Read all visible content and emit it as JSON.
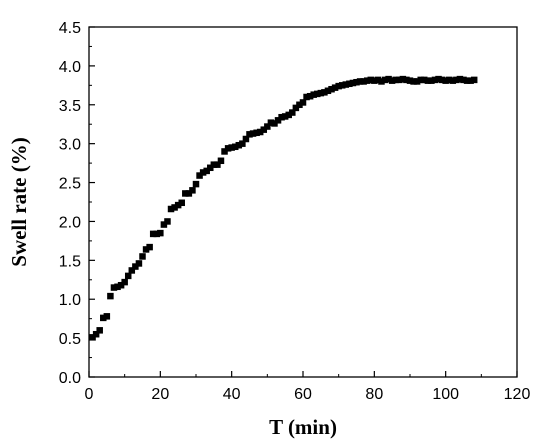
{
  "chart_data": {
    "type": "scatter",
    "title": "",
    "xlabel": "T (min)",
    "ylabel": "Swell rate (%)",
    "xlim": [
      0,
      120
    ],
    "ylim": [
      0,
      4.5
    ],
    "xticks": [
      0,
      20,
      40,
      60,
      80,
      100,
      120
    ],
    "yticks": [
      0.0,
      0.5,
      1.0,
      1.5,
      2.0,
      2.5,
      3.0,
      3.5,
      4.0,
      4.5
    ],
    "ytick_labels": [
      "0.0",
      "0.5",
      "1.0",
      "1.5",
      "2.0",
      "2.5",
      "3.0",
      "3.5",
      "4.0",
      "4.5"
    ],
    "xtick_labels": [
      "0",
      "20",
      "40",
      "60",
      "80",
      "100",
      "120"
    ],
    "grid": false,
    "legend": "none",
    "marker": "square",
    "marker_color": "#000000",
    "series": [
      {
        "x": [
          1,
          2,
          3,
          4,
          5,
          6,
          7,
          8,
          9,
          10,
          11,
          12,
          13,
          14,
          15,
          16,
          17,
          18,
          19,
          20,
          21,
          22,
          23,
          24,
          25,
          26,
          27,
          28,
          29,
          30,
          31,
          32,
          33,
          34,
          35,
          36,
          37,
          38,
          39,
          40,
          41,
          42,
          43,
          44,
          45,
          46,
          47,
          48,
          49,
          50,
          51,
          52,
          53,
          54,
          55,
          56,
          57,
          58,
          59,
          60,
          61,
          62,
          63,
          64,
          65,
          66,
          67,
          68,
          69,
          70,
          71,
          72,
          73,
          74,
          75,
          76,
          77,
          78,
          79,
          80,
          81,
          82,
          83,
          84,
          85,
          86,
          87,
          88,
          89,
          90,
          91,
          92,
          93,
          94,
          95,
          96,
          97,
          98,
          99,
          100,
          101,
          102,
          103,
          104,
          105,
          106,
          107,
          108
        ],
        "y": [
          0.51,
          0.55,
          0.6,
          0.76,
          0.78,
          1.04,
          1.15,
          1.16,
          1.18,
          1.22,
          1.3,
          1.37,
          1.42,
          1.46,
          1.55,
          1.64,
          1.67,
          1.84,
          1.84,
          1.85,
          1.96,
          2.0,
          2.16,
          2.18,
          2.21,
          2.24,
          2.36,
          2.36,
          2.4,
          2.48,
          2.59,
          2.63,
          2.65,
          2.69,
          2.73,
          2.73,
          2.78,
          2.9,
          2.94,
          2.95,
          2.96,
          2.98,
          3.0,
          3.06,
          3.12,
          3.13,
          3.14,
          3.15,
          3.18,
          3.22,
          3.27,
          3.26,
          3.3,
          3.34,
          3.35,
          3.37,
          3.4,
          3.46,
          3.5,
          3.53,
          3.6,
          3.61,
          3.63,
          3.64,
          3.65,
          3.66,
          3.68,
          3.7,
          3.72,
          3.74,
          3.75,
          3.76,
          3.77,
          3.78,
          3.79,
          3.8,
          3.8,
          3.81,
          3.82,
          3.81,
          3.82,
          3.8,
          3.82,
          3.83,
          3.81,
          3.82,
          3.82,
          3.83,
          3.82,
          3.81,
          3.8,
          3.8,
          3.82,
          3.82,
          3.81,
          3.81,
          3.82,
          3.83,
          3.82,
          3.81,
          3.82,
          3.81,
          3.82,
          3.83,
          3.82,
          3.81,
          3.81,
          3.82
        ]
      }
    ]
  }
}
